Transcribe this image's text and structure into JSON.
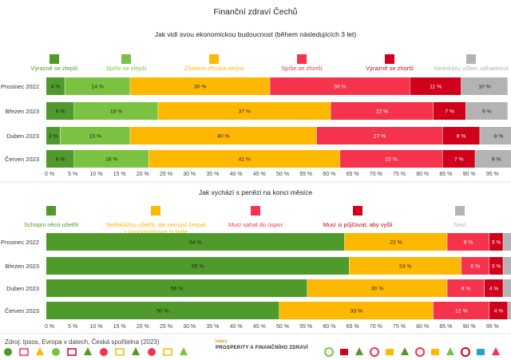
{
  "title": "Finanční zdraví Čechů",
  "source": "Zdroj: Ipsos, Evropa v datech, Česká spořitelna (2023)",
  "brand": {
    "top": "Index",
    "name": "PROSPERITY A FINANČNÍHO ZDRAVÍ"
  },
  "colors": {
    "dark_green": "#4f9a2a",
    "light_green": "#7cc242",
    "orange": "#ffb800",
    "red": "#f5334d",
    "dark_red": "#d0021b",
    "gray": "#b3b3b3"
  },
  "chart_data": [
    {
      "type": "bar",
      "stacked": true,
      "orientation": "horizontal",
      "title": "Jak vidí svou ekonomickou budoucnost (během následujících 3 let)",
      "categories": [
        "Prosinec 2022",
        "Březen 2023",
        "Duben 2023",
        "Červen 2023"
      ],
      "series": [
        {
          "name": "Výrazně se zlepší",
          "color": "#4f9a2a",
          "values": [
            4,
            6,
            3,
            6
          ]
        },
        {
          "name": "Spíše se zlepší",
          "color": "#7cc242",
          "values": [
            14,
            18,
            15,
            16
          ]
        },
        {
          "name": "Zůstane zhruba stejná",
          "color": "#ffb800",
          "values": [
            30,
            37,
            40,
            41
          ]
        },
        {
          "name": "Spíše se zhorší",
          "color": "#f5334d",
          "values": [
            30,
            22,
            27,
            22
          ]
        },
        {
          "name": "Výrazně se zhorší",
          "color": "#d0021b",
          "values": [
            11,
            7,
            8,
            7
          ]
        },
        {
          "name": "Nedokážu vůbec odhadnout",
          "color": "#b3b3b3",
          "values": [
            10,
            9,
            8,
            9
          ]
        }
      ],
      "xlim": [
        0,
        100
      ],
      "xticks": [
        "0 %",
        "5 %",
        "10 %",
        "15 %",
        "20 %",
        "25 %",
        "30 %",
        "35 %",
        "40 %",
        "45 %",
        "50 %",
        "55 %",
        "60 %",
        "65 %",
        "70 %",
        "75 %",
        "80 %",
        "85 %",
        "90 %",
        "95 %"
      ],
      "legend": "top"
    },
    {
      "type": "bar",
      "stacked": true,
      "orientation": "horizontal",
      "title": "Jak vychází s penězi na konci měsíce",
      "categories": [
        "Prosinec 2022",
        "Březen 2023",
        "Duben 2023",
        "Červen 2023"
      ],
      "series": [
        {
          "name": "Schopni něco ušetřit",
          "color": "#4f9a2a",
          "values": [
            64,
            65,
            56,
            50
          ]
        },
        {
          "name": "Nedokážou ušetřit, ale nemusí čerpat z úspor/půjčovat si jinde",
          "color": "#ffb800",
          "values": [
            22,
            24,
            30,
            33
          ]
        },
        {
          "name": "Musí sahat do úspor",
          "color": "#f5334d",
          "values": [
            9,
            6,
            8,
            12
          ]
        },
        {
          "name": "Musí si půjčovat, aby vyšli",
          "color": "#d0021b",
          "values": [
            3,
            3,
            4,
            4
          ]
        },
        {
          "name": "Neví",
          "color": "#b3b3b3",
          "values": [
            2,
            2,
            2,
            1
          ]
        }
      ],
      "xlim": [
        0,
        100
      ],
      "xticks": [
        "0 %",
        "5 %",
        "10 %",
        "15 %",
        "20 %",
        "25 %",
        "30 %",
        "35 %",
        "40 %",
        "45 %",
        "50 %",
        "55 %",
        "60 %",
        "65 %",
        "70 %",
        "75 %",
        "80 %",
        "85 %",
        "90 %",
        "95 %"
      ],
      "legend": "top"
    }
  ]
}
